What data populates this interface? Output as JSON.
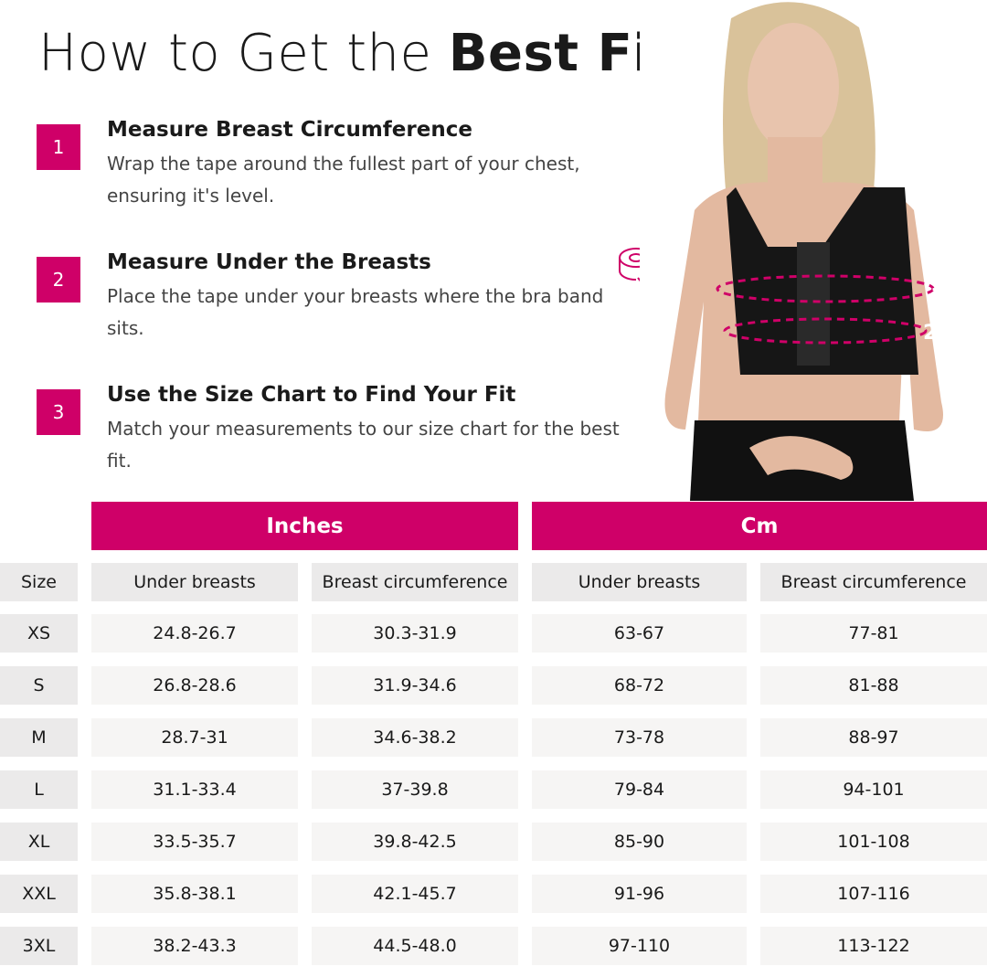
{
  "title": {
    "light": "How to Get the ",
    "bold": "Best Fit"
  },
  "steps": [
    {
      "number": "1",
      "title": "Measure Breast Circumference",
      "description": "Wrap the tape around the fullest part of your chest, ensuring it's level."
    },
    {
      "number": "2",
      "title": "Measure Under the Breasts",
      "description": "Place the tape under your breasts where the bra band sits."
    },
    {
      "number": "3",
      "title": "Use the Size Chart to Find Your Fit",
      "description": "Match your measurements to our size chart for the best fit."
    }
  ],
  "photo": {
    "markers": [
      "1",
      "2"
    ],
    "accent": "#cf0068"
  },
  "table": {
    "groups": [
      "Inches",
      "Cm"
    ],
    "columns": [
      "Size",
      "Under breasts",
      "Breast circumference",
      "Under breasts",
      "Breast circumference"
    ],
    "rows": [
      [
        "XS",
        "24.8-26.7",
        "30.3-31.9",
        "63-67",
        "77-81"
      ],
      [
        "S",
        "26.8-28.6",
        "31.9-34.6",
        "68-72",
        "81-88"
      ],
      [
        "M",
        "28.7-31",
        "34.6-38.2",
        "73-78",
        "88-97"
      ],
      [
        "L",
        "31.1-33.4",
        "37-39.8",
        "79-84",
        "94-101"
      ],
      [
        "XL",
        "33.5-35.7",
        "39.8-42.5",
        "85-90",
        "101-108"
      ],
      [
        "XXL",
        "35.8-38.1",
        "42.1-45.7",
        "91-96",
        "107-116"
      ],
      [
        "3XL",
        "38.2-43.3",
        "44.5-48.0",
        "97-110",
        "113-122"
      ]
    ]
  }
}
